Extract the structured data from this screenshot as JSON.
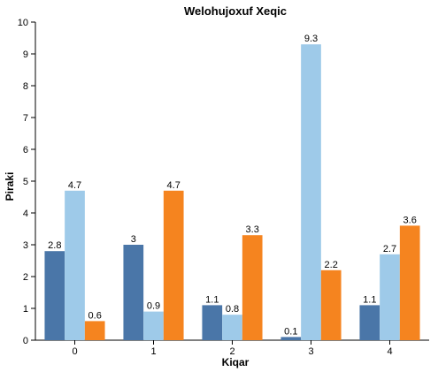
{
  "chart_data": {
    "type": "bar",
    "title": "Welohujoxuf Xeqic",
    "xlabel": "Kiqar",
    "ylabel": "Piraki",
    "categories": [
      "0",
      "1",
      "2",
      "3",
      "4"
    ],
    "ylim": [
      0,
      10
    ],
    "yticks": [
      0,
      1,
      2,
      3,
      4,
      5,
      6,
      7,
      8,
      9,
      10
    ],
    "grid": false,
    "series": [
      {
        "color": "#4a76a8",
        "values": [
          2.8,
          3,
          1.1,
          0.1,
          1.1
        ],
        "labels": [
          "2.8",
          "3",
          "1.1",
          "0.1",
          "1.1"
        ]
      },
      {
        "color": "#9ecae9",
        "values": [
          4.7,
          0.9,
          0.8,
          9.3,
          2.7
        ],
        "labels": [
          "4.7",
          "0.9",
          "0.8",
          "9.3",
          "2.7"
        ]
      },
      {
        "color": "#f5841f",
        "values": [
          0.6,
          4.7,
          3.3,
          2.2,
          3.6
        ],
        "labels": [
          "0.6",
          "4.7",
          "3.3",
          "2.2",
          "3.6"
        ]
      }
    ]
  }
}
